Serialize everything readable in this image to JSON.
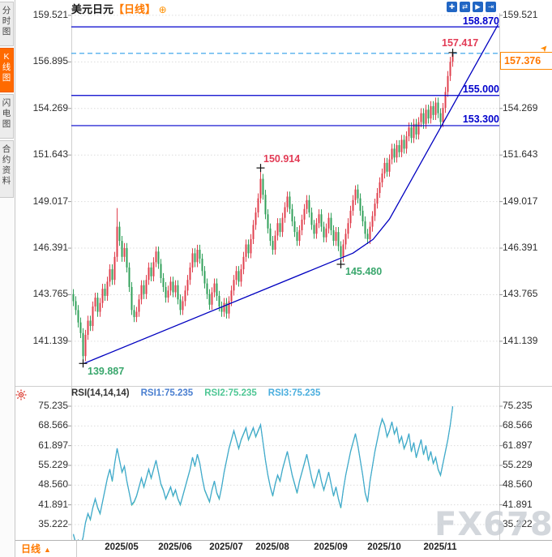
{
  "colors": {
    "up": "#e0404e",
    "down": "#31a05a",
    "up_label": "#e23b55",
    "down_label": "#3aa76d",
    "trend_blue": "#0000c0",
    "level_blue": "#0000cc",
    "dashed_blue": "#2f9fe8",
    "rsi_line": "#41a8d0",
    "rsi_line2": "#4fc795",
    "accent_orange": "#ff7a00",
    "icon_blue": "#2166c4",
    "grid": "#dcdcdc",
    "watermark": "#c9ced4"
  },
  "sidebar": {
    "tabs": [
      {
        "label": "分时图",
        "active": false
      },
      {
        "label": "K线图",
        "active": true
      },
      {
        "label": "闪电图",
        "active": false
      },
      {
        "label": "合约资料",
        "active": false
      }
    ]
  },
  "header": {
    "symbol": "美元日元",
    "period": "【日线】",
    "expand_icon": "⊕",
    "toolbar": [
      {
        "name": "crosshair-move-icon",
        "glyph": "✚"
      },
      {
        "name": "zoom-horizontal-icon",
        "glyph": "⇄"
      },
      {
        "name": "playback-icon",
        "glyph": "▶"
      },
      {
        "name": "pan-right-icon",
        "glyph": "⇥"
      }
    ]
  },
  "price_panel": {
    "y_axis": [
      "159.521",
      "156.895",
      "154.269",
      "151.643",
      "149.017",
      "146.391",
      "143.765",
      "141.139"
    ],
    "levels": [
      {
        "value": 158.87,
        "label": "158.870"
      },
      {
        "value": 155.0,
        "label": "155.000"
      },
      {
        "value": 153.3,
        "label": "153.300"
      }
    ],
    "current_price": {
      "value": 157.376,
      "label": "157.376"
    },
    "annotations": [
      {
        "day": 4,
        "price": 139.887,
        "label": "139.887",
        "tone": "down",
        "placement": "below"
      },
      {
        "day": 77,
        "price": 150.914,
        "label": "150.914",
        "tone": "up",
        "placement": "above"
      },
      {
        "day": 110,
        "price": 145.48,
        "label": "145.480",
        "tone": "down",
        "placement": "below"
      },
      {
        "day": 156,
        "price": 157.417,
        "label": "157.417",
        "tone": "up",
        "placement": "above-left"
      }
    ]
  },
  "rsi_panel": {
    "title": "RSI(14,14,14)",
    "series_labels": [
      {
        "label": "RSI1:75.235",
        "color": "#4a7fd0"
      },
      {
        "label": "RSI2:75.235",
        "color": "#4fc795"
      },
      {
        "label": "RSI3:75.235",
        "color": "#4aaede"
      }
    ],
    "y_axis": [
      "75.235",
      "68.566",
      "61.897",
      "55.229",
      "48.560",
      "41.891",
      "35.222"
    ]
  },
  "x_axis": {
    "labels": [
      "2025/05",
      "2025/06",
      "2025/07",
      "2025/08",
      "2025/09",
      "2025/10",
      "2025/11"
    ],
    "label_days": [
      20,
      42,
      63,
      82,
      106,
      128,
      151
    ]
  },
  "footer": {
    "period_label": "日线",
    "arrow": "▲"
  },
  "watermark": "FX678",
  "chart_data": {
    "type": "candlestick",
    "title": "美元日元【日线】",
    "price_axis_values": [
      159.521,
      156.895,
      154.269,
      151.643,
      149.017,
      146.391,
      143.765,
      141.139
    ],
    "rsi_axis_values": [
      75.235,
      68.566,
      61.897,
      55.229,
      48.56,
      41.891,
      35.222
    ],
    "horizontal_levels": [
      158.87,
      155.0,
      153.3
    ],
    "current_price": 157.376,
    "first_open": 143.8,
    "default_wick": 0.28,
    "closes": [
      143.4,
      142.9,
      142.2,
      141.6,
      140.3,
      141.5,
      142.3,
      142.0,
      143.1,
      143.6,
      142.8,
      143.3,
      144.1,
      143.7,
      144.5,
      145.2,
      144.6,
      145.9,
      147.6,
      146.8,
      145.9,
      146.4,
      145.3,
      144.2,
      142.9,
      142.5,
      142.8,
      143.5,
      144.3,
      143.8,
      144.6,
      145.3,
      144.8,
      145.6,
      146.2,
      145.5,
      144.7,
      144.2,
      143.6,
      144.0,
      144.5,
      143.9,
      144.3,
      143.5,
      142.9,
      143.4,
      144.0,
      144.6,
      145.3,
      146.1,
      145.6,
      146.3,
      145.8,
      145.1,
      144.4,
      143.8,
      143.2,
      143.9,
      144.4,
      143.7,
      143.1,
      142.8,
      143.3,
      142.7,
      143.4,
      144.0,
      144.6,
      145.1,
      144.5,
      145.2,
      145.9,
      146.6,
      146.1,
      146.9,
      147.7,
      148.4,
      149.2,
      150.3,
      149.4,
      148.3,
      147.5,
      146.8,
      146.3,
      147.1,
      147.8,
      147.3,
      148.1,
      148.7,
      149.3,
      148.6,
      147.9,
      147.3,
      146.8,
      147.4,
      148.0,
      148.6,
      149.1,
      148.4,
      147.7,
      147.2,
      147.8,
      148.3,
      147.6,
      147.0,
      147.5,
      148.1,
      147.4,
      146.8,
      147.3,
      146.5,
      145.9,
      146.6,
      147.2,
      147.8,
      148.5,
      149.1,
      149.7,
      149.2,
      148.5,
      147.9,
      147.2,
      146.9,
      147.6,
      148.2,
      148.9,
      149.5,
      150.1,
      150.6,
      151.2,
      150.7,
      151.4,
      152.0,
      151.5,
      152.2,
      151.8,
      152.5,
      152.0,
      152.7,
      153.2,
      152.6,
      153.4,
      152.8,
      153.5,
      154.0,
      153.4,
      154.2,
      153.7,
      154.4,
      153.9,
      154.6,
      154.0,
      153.5,
      154.3,
      155.2,
      156.1,
      156.9,
      157.376
    ],
    "extremes": {
      "4": {
        "low": 139.887
      },
      "18": {
        "high": 148.65
      },
      "77": {
        "high": 150.914
      },
      "110": {
        "low": 145.48
      },
      "116": {
        "high": 149.93
      },
      "156": {
        "high": 157.417
      }
    },
    "rsi_values": [
      32,
      29,
      30,
      28,
      31,
      36,
      39,
      37,
      41,
      44,
      41,
      39,
      43,
      47,
      51,
      54,
      50,
      56,
      61,
      57,
      53,
      55,
      50,
      46,
      42,
      43,
      45,
      48,
      51,
      48,
      51,
      54,
      51,
      54,
      57,
      53,
      49,
      47,
      44,
      46,
      48,
      45,
      47,
      44,
      42,
      45,
      48,
      51,
      54,
      58,
      55,
      59,
      56,
      51,
      47,
      45,
      43,
      47,
      50,
      46,
      44,
      48,
      53,
      57,
      61,
      64,
      67,
      64,
      61,
      64,
      66,
      68,
      64,
      66,
      68,
      65,
      67,
      69,
      63,
      57,
      52,
      48,
      45,
      49,
      52,
      50,
      54,
      57,
      60,
      56,
      52,
      49,
      46,
      50,
      53,
      56,
      59,
      55,
      51,
      48,
      51,
      54,
      50,
      47,
      50,
      53,
      49,
      45,
      48,
      44,
      41,
      47,
      52,
      56,
      60,
      63,
      66,
      62,
      57,
      52,
      46,
      43,
      50,
      55,
      60,
      64,
      68,
      71,
      69,
      65,
      67,
      70,
      66,
      68,
      63,
      65,
      61,
      63,
      66,
      60,
      63,
      58,
      61,
      64,
      59,
      62,
      57,
      60,
      56,
      58,
      54,
      52,
      56,
      60,
      64,
      69,
      75.2
    ],
    "trendline_day_price": [
      [
        4.33,
        139.887
      ],
      [
        115,
        146.11
      ],
      [
        123.3,
        146.89
      ],
      [
        130,
        148.03
      ],
      [
        174.7,
        159.01
      ]
    ]
  }
}
